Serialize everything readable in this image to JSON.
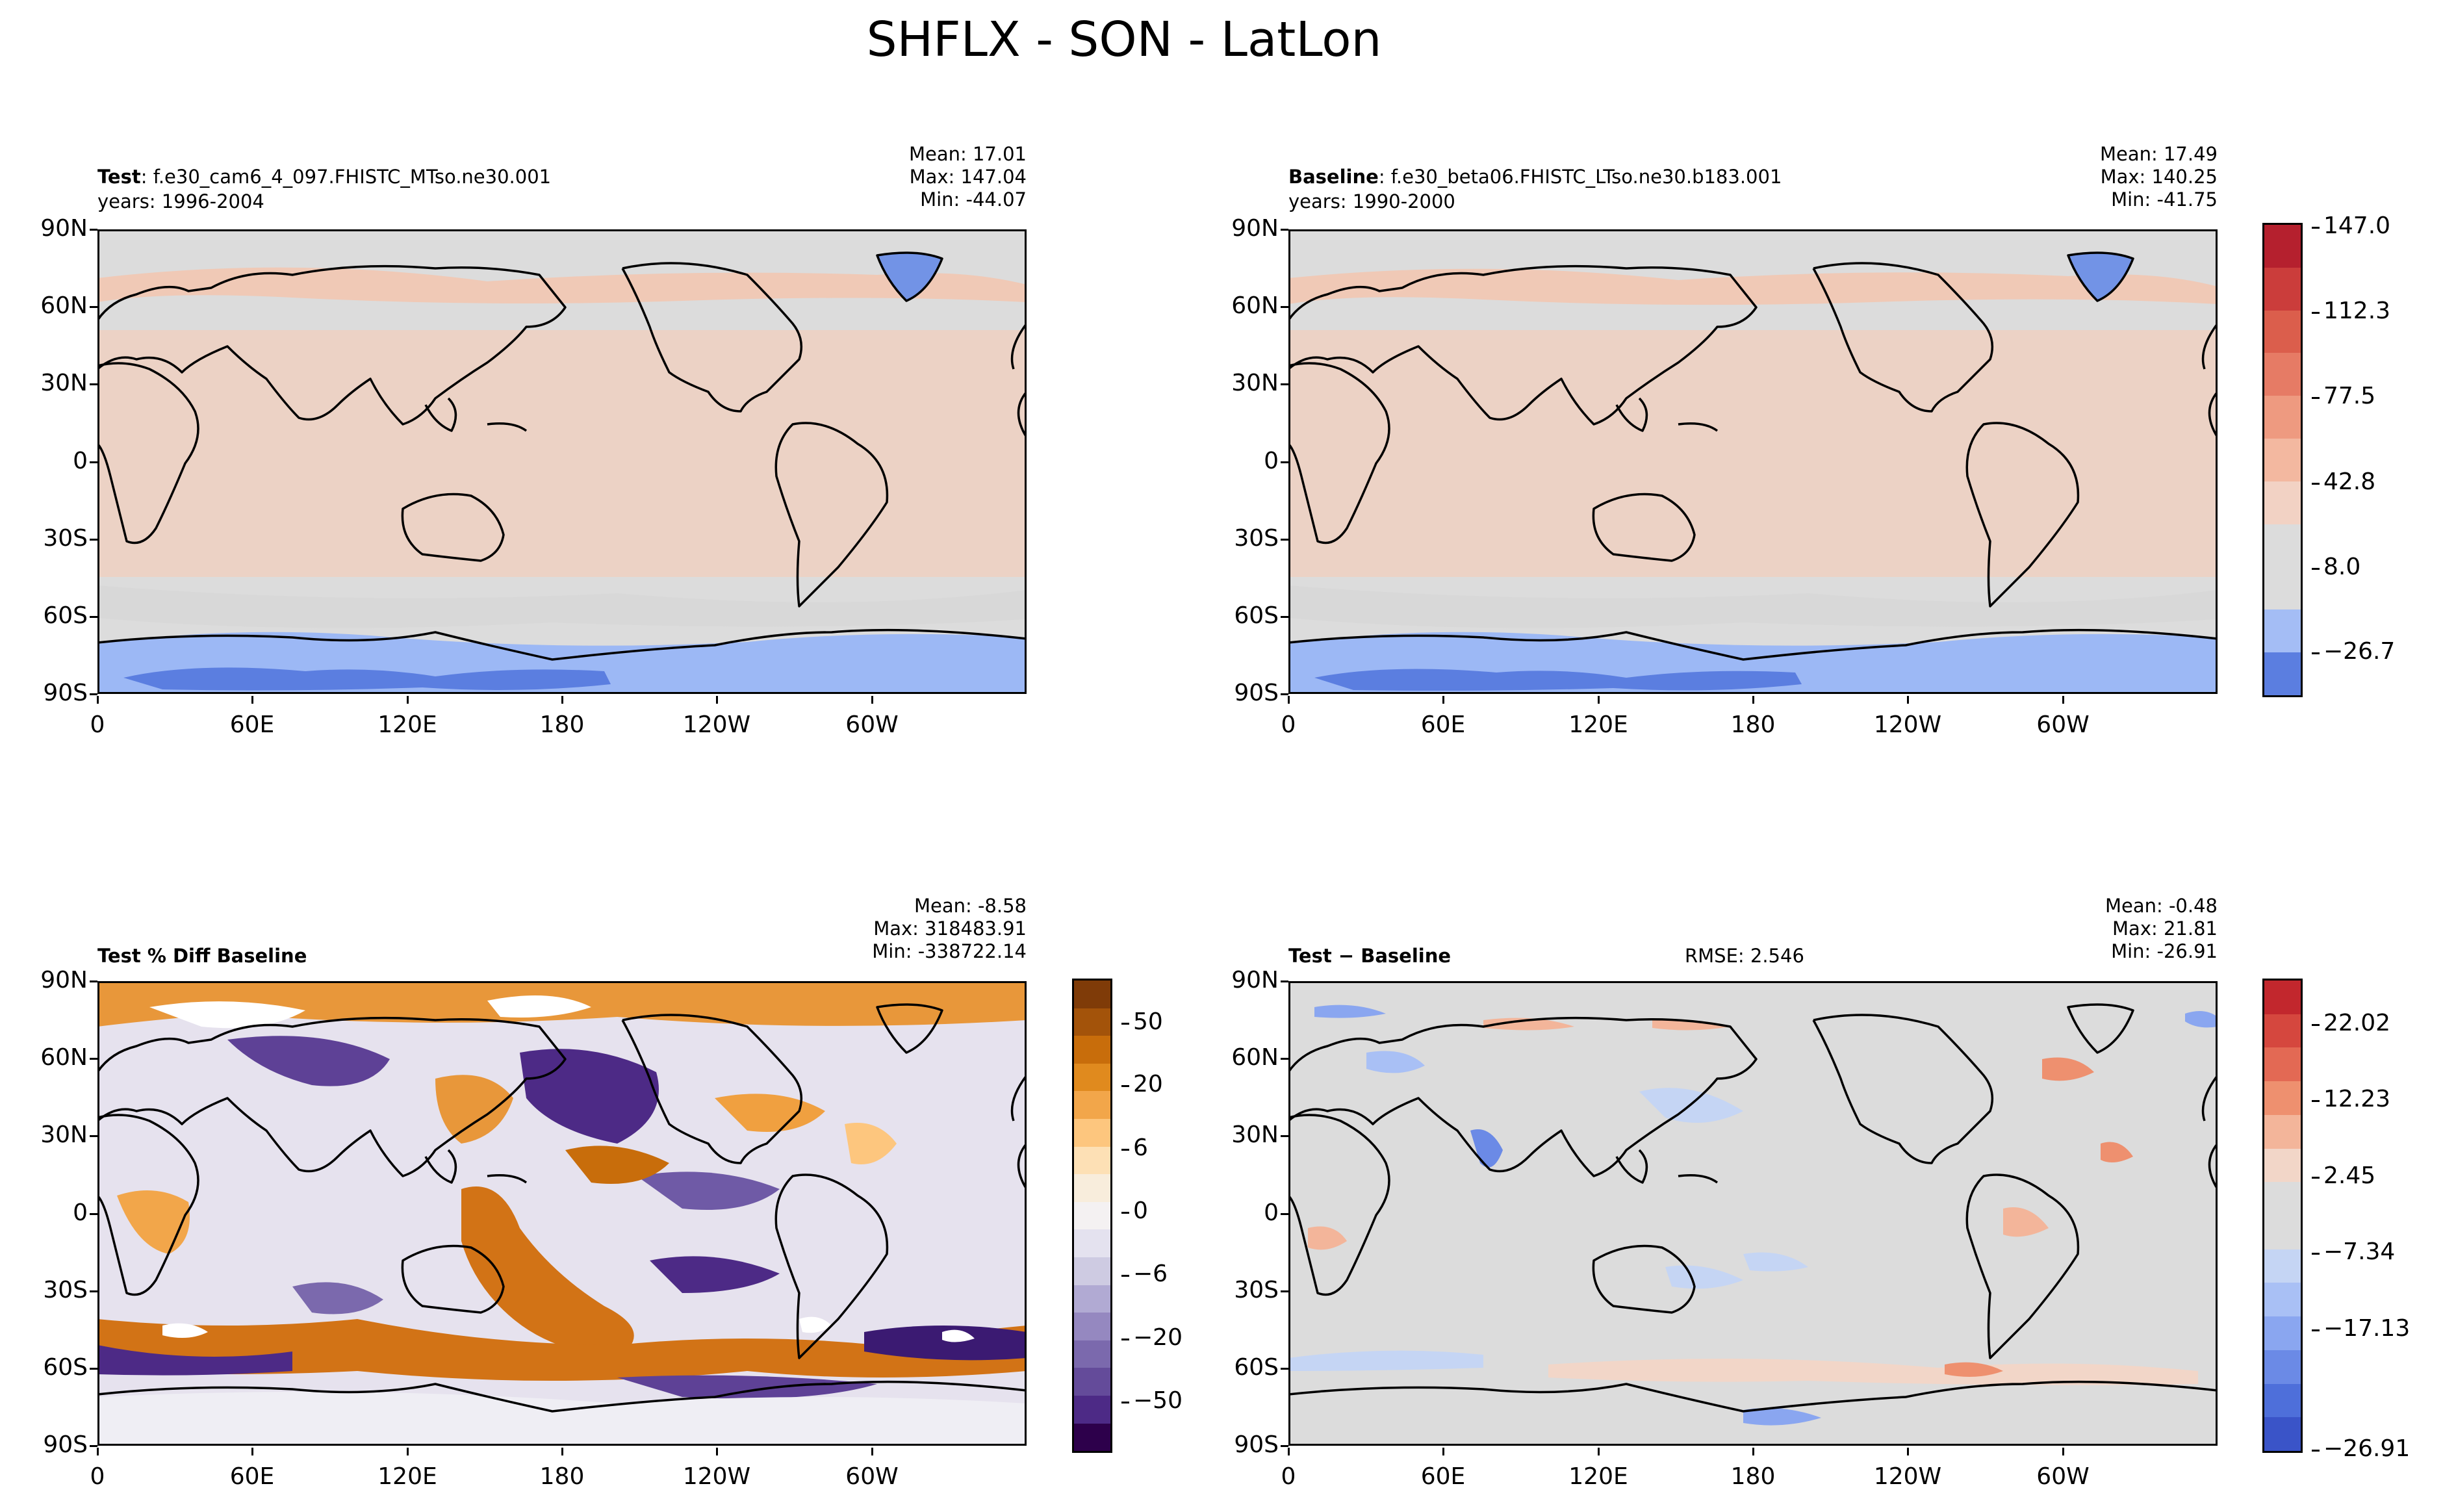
{
  "figure": {
    "title": "SHFLX - SON - LatLon"
  },
  "axes": {
    "y_ticks": [
      "90N",
      "60N",
      "30N",
      "0",
      "30S",
      "60S",
      "90S"
    ],
    "x_ticks": [
      "0",
      "60E",
      "120E",
      "180",
      "120W",
      "60W"
    ]
  },
  "colors": {
    "ocean_base": "#dcdcdc",
    "warm_light": "#f1cdbb",
    "warm_mid": "#ec9c80",
    "warm_strong": "#d95d4c",
    "cold_light": "#9cb8f5",
    "cold_strong": "#4e73d8",
    "coast": "#000000"
  },
  "panels": {
    "test": {
      "label": "Test",
      "case": ": f.e30_cam6_4_097.FHISTC_MTso.ne30.001",
      "years": "years: 1996-2004",
      "mean": "Mean: 17.01",
      "max": "Max: 147.04",
      "min": "Min: -44.07"
    },
    "baseline": {
      "label": "Baseline",
      "case": ": f.e30_beta06.FHISTC_LTso.ne30.b183.001",
      "years": "years: 1990-2000",
      "mean": "Mean: 17.49",
      "max": "Max: 140.25",
      "min": "Min: -41.75"
    },
    "pctdiff": {
      "label": "Test % Diff Baseline",
      "mean": "Mean: -8.58",
      "max": "Max: 318483.91",
      "min": "Min: -338722.14"
    },
    "diff": {
      "label": "Test − Baseline",
      "rmse": "RMSE: 2.546",
      "mean": "Mean: -0.48",
      "max": "Max: 21.81",
      "min": "Min: -26.91"
    }
  },
  "colorbars": {
    "main": {
      "labels": [
        "147.0",
        "112.3",
        "77.5",
        "42.8",
        "8.0",
        "−26.7"
      ],
      "colors": [
        "#b5202e",
        "#cb3d3b",
        "#db5e4c",
        "#e67b65",
        "#ee9a80",
        "#f3b8a0",
        "#f2d2c4",
        "#dcdcdc",
        "#dcdcdc",
        "#a4bdf5",
        "#5b7ee0"
      ]
    },
    "pctdiff": {
      "labels": [
        "50",
        "20",
        "6",
        "0",
        "−6",
        "−20",
        "−50"
      ],
      "colors": [
        "#7f3b08",
        "#a3530a",
        "#c86d0b",
        "#e08a1e",
        "#f2a64a",
        "#fdc67e",
        "#fde0b5",
        "#f8eddc",
        "#f4f1f2",
        "#e4e2ef",
        "#cecbe2",
        "#b1aad3",
        "#9588c0",
        "#7b69ad",
        "#644b9a",
        "#4d2a86",
        "#2d004b"
      ]
    },
    "diff": {
      "labels": [
        "22.02",
        "12.23",
        "2.45",
        "−7.34",
        "−17.13",
        "−26.91"
      ],
      "colors": [
        "#c2272d",
        "#d5473e",
        "#e36954",
        "#ee906f",
        "#f3b59a",
        "#f2d6c8",
        "#dcdcdc",
        "#dcdcdc",
        "#c5d5f4",
        "#a9c0f5",
        "#8aa6f0",
        "#6b8ae6",
        "#4e6fda",
        "#3a54c8"
      ]
    }
  },
  "chart_data": [
    {
      "type": "heatmap",
      "subtype": "lat-lon filled contour map",
      "title": "Test : f.e30_cam6_4_097.FHISTC_MTso.ne30.001",
      "variable": "SHFLX",
      "season": "SON",
      "x": [
        "0",
        "60E",
        "120E",
        "180",
        "120W",
        "60W"
      ],
      "y": [
        "90N",
        "60N",
        "30N",
        "0",
        "30S",
        "60S",
        "90S"
      ],
      "stats": {
        "mean": 17.01,
        "max": 147.04,
        "min": -44.07
      },
      "colorbar_ticks": [
        147.0,
        112.3,
        77.5,
        42.8,
        8.0,
        -26.7
      ]
    },
    {
      "type": "heatmap",
      "subtype": "lat-lon filled contour map",
      "title": "Baseline : f.e30_beta06.FHISTC_LTso.ne30.b183.001",
      "variable": "SHFLX",
      "season": "SON",
      "x": [
        "0",
        "60E",
        "120E",
        "180",
        "120W",
        "60W"
      ],
      "y": [
        "90N",
        "60N",
        "30N",
        "0",
        "30S",
        "60S",
        "90S"
      ],
      "stats": {
        "mean": 17.49,
        "max": 140.25,
        "min": -41.75
      },
      "colorbar_ticks": [
        147.0,
        112.3,
        77.5,
        42.8,
        8.0,
        -26.7
      ]
    },
    {
      "type": "heatmap",
      "subtype": "lat-lon filled contour map",
      "title": "Test % Diff Baseline",
      "x": [
        "0",
        "60E",
        "120E",
        "180",
        "120W",
        "60W"
      ],
      "y": [
        "90N",
        "60N",
        "30N",
        "0",
        "30S",
        "60S",
        "90S"
      ],
      "stats": {
        "mean": -8.58,
        "max": 318483.91,
        "min": -338722.14
      },
      "colorbar_ticks": [
        50,
        20,
        6,
        0,
        -6,
        -20,
        -50
      ]
    },
    {
      "type": "heatmap",
      "subtype": "lat-lon filled contour map",
      "title": "Test − Baseline",
      "x": [
        "0",
        "60E",
        "120E",
        "180",
        "120W",
        "60W"
      ],
      "y": [
        "90N",
        "60N",
        "30N",
        "0",
        "30S",
        "60S",
        "90S"
      ],
      "stats": {
        "mean": -0.48,
        "max": 21.81,
        "min": -26.91,
        "rmse": 2.546
      },
      "colorbar_ticks": [
        22.02,
        12.23,
        2.45,
        -7.34,
        -17.13,
        -26.91
      ]
    }
  ]
}
